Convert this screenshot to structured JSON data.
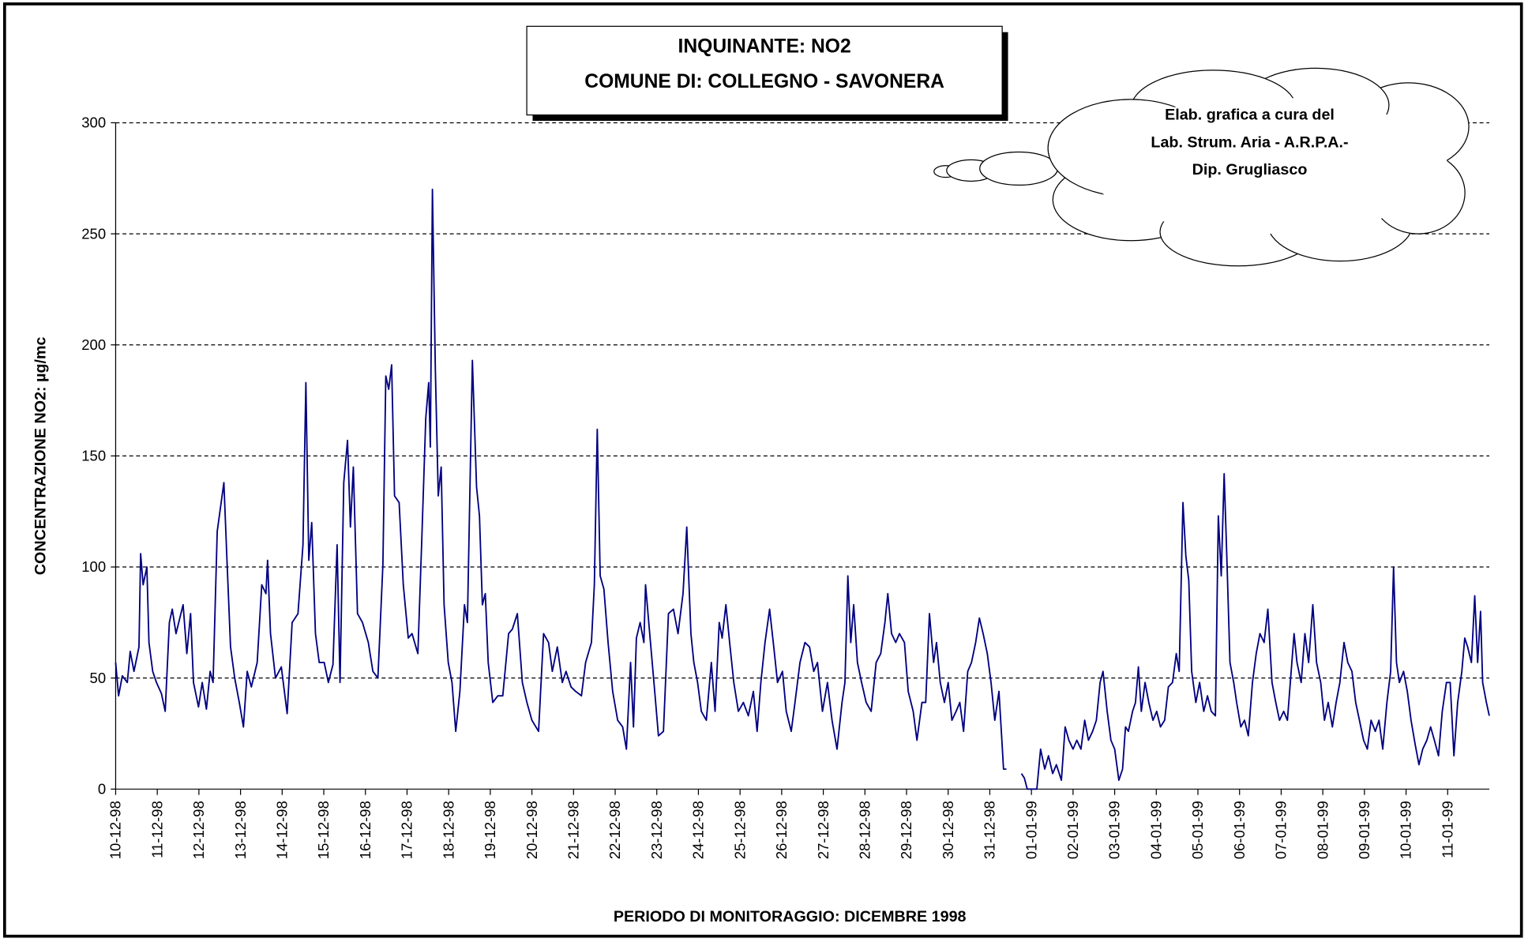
{
  "chart_data": {
    "type": "line",
    "title": "INQUINANTE: NO2",
    "subtitle": "COMUNE DI: COLLEGNO - SAVONERA",
    "annotation": [
      "Elab. grafica a cura del",
      "Lab. Strum. Aria - A.R.P.A.-",
      "Dip. Grugliasco"
    ],
    "ylabel": "CONCENTRAZIONE NO2:  µg/mc",
    "xlabel": "PERIODO DI MONITORAGGIO: DICEMBRE 1998",
    "color": "#000080",
    "grid": true,
    "ylim": [
      0,
      300
    ],
    "yticks": [
      0,
      50,
      100,
      150,
      200,
      250,
      300
    ],
    "xlim": [
      0,
      33
    ],
    "xticks": [
      {
        "value": 0,
        "label": "10-12-98"
      },
      {
        "value": 1,
        "label": "11-12-98"
      },
      {
        "value": 2,
        "label": "12-12-98"
      },
      {
        "value": 3,
        "label": "13-12-98"
      },
      {
        "value": 4,
        "label": "14-12-98"
      },
      {
        "value": 5,
        "label": "15-12-98"
      },
      {
        "value": 6,
        "label": "16-12-98"
      },
      {
        "value": 7,
        "label": "17-12-98"
      },
      {
        "value": 8,
        "label": "18-12-98"
      },
      {
        "value": 9,
        "label": "19-12-98"
      },
      {
        "value": 10,
        "label": "20-12-98"
      },
      {
        "value": 11,
        "label": "21-12-98"
      },
      {
        "value": 12,
        "label": "22-12-98"
      },
      {
        "value": 13,
        "label": "23-12-98"
      },
      {
        "value": 14,
        "label": "24-12-98"
      },
      {
        "value": 15,
        "label": "25-12-98"
      },
      {
        "value": 16,
        "label": "26-12-98"
      },
      {
        "value": 17,
        "label": "27-12-98"
      },
      {
        "value": 18,
        "label": "28-12-98"
      },
      {
        "value": 19,
        "label": "29-12-98"
      },
      {
        "value": 20,
        "label": "30-12-98"
      },
      {
        "value": 21,
        "label": "31-12-98"
      },
      {
        "value": 22,
        "label": "01-01-99"
      },
      {
        "value": 23,
        "label": "02-01-99"
      },
      {
        "value": 24,
        "label": "03-01-99"
      },
      {
        "value": 25,
        "label": "04-01-99"
      },
      {
        "value": 26,
        "label": "05-01-99"
      },
      {
        "value": 27,
        "label": "06-01-99"
      },
      {
        "value": 28,
        "label": "07-01-99"
      },
      {
        "value": 29,
        "label": "08-01-99"
      },
      {
        "value": 30,
        "label": "09-01-99"
      },
      {
        "value": 31,
        "label": "10-01-99"
      },
      {
        "value": 32,
        "label": "11-01-99"
      }
    ],
    "x": [
      0,
      0.07,
      0.16,
      0.28,
      0.35,
      0.44,
      0.56,
      0.6,
      0.66,
      0.75,
      0.8,
      0.89,
      0.98,
      1.1,
      1.19,
      1.29,
      1.36,
      1.45,
      1.62,
      1.71,
      1.8,
      1.87,
      1.99,
      2.08,
      2.18,
      2.27,
      2.34,
      2.44,
      2.6,
      2.67,
      2.76,
      2.86,
      2.97,
      3.07,
      3.16,
      3.26,
      3.4,
      3.51,
      3.61,
      3.65,
      3.72,
      3.84,
      3.98,
      4.12,
      4.24,
      4.38,
      4.5,
      4.57,
      4.64,
      4.71,
      4.8,
      4.89,
      5.01,
      5.11,
      5.22,
      5.32,
      5.39,
      5.48,
      5.57,
      5.64,
      5.71,
      5.81,
      5.93,
      6.07,
      6.18,
      6.3,
      6.42,
      6.49,
      6.56,
      6.63,
      6.7,
      6.81,
      6.91,
      7.03,
      7.12,
      7.26,
      7.35,
      7.45,
      7.52,
      7.56,
      7.61,
      7.68,
      7.75,
      7.82,
      7.89,
      7.99,
      8.08,
      8.17,
      8.27,
      8.38,
      8.45,
      8.57,
      8.67,
      8.74,
      8.81,
      8.88,
      8.95,
      9.06,
      9.18,
      9.3,
      9.44,
      9.53,
      9.65,
      9.77,
      9.88,
      10.0,
      10.16,
      10.28,
      10.4,
      10.49,
      10.61,
      10.73,
      10.82,
      10.94,
      11.05,
      11.19,
      11.29,
      11.43,
      11.5,
      11.57,
      11.64,
      11.73,
      11.83,
      11.94,
      12.06,
      12.18,
      12.27,
      12.37,
      12.44,
      12.51,
      12.6,
      12.69,
      12.73,
      12.83,
      12.95,
      13.04,
      13.16,
      13.28,
      13.4,
      13.51,
      13.63,
      13.72,
      13.82,
      13.89,
      13.98,
      14.07,
      14.19,
      14.31,
      14.4,
      14.5,
      14.57,
      14.66,
      14.75,
      14.85,
      14.96,
      15.08,
      15.2,
      15.32,
      15.41,
      15.5,
      15.6,
      15.71,
      15.81,
      15.9,
      16.02,
      16.11,
      16.23,
      16.32,
      16.44,
      16.56,
      16.67,
      16.77,
      16.86,
      16.98,
      17.1,
      17.21,
      17.33,
      17.45,
      17.52,
      17.59,
      17.66,
      17.73,
      17.82,
      17.92,
      18.03,
      18.15,
      18.27,
      18.38,
      18.48,
      18.55,
      18.64,
      18.74,
      18.83,
      18.95,
      19.04,
      19.16,
      19.25,
      19.37,
      19.46,
      19.55,
      19.65,
      19.72,
      19.81,
      19.91,
      20.0,
      20.09,
      20.19,
      20.28,
      20.37,
      20.47,
      20.56,
      20.66,
      20.75,
      20.84,
      20.94,
      21.03,
      21.12,
      21.22,
      21.29,
      21.33,
      21.4,
      21.58,
      21.76,
      21.83,
      21.9,
      22.13,
      22.22,
      22.32,
      22.41,
      22.51,
      22.6,
      22.72,
      22.81,
      22.9,
      23.0,
      23.09,
      23.19,
      23.28,
      23.37,
      23.47,
      23.56,
      23.65,
      23.72,
      23.82,
      23.91,
      24.0,
      24.1,
      24.19,
      24.26,
      24.33,
      24.43,
      24.5,
      24.57,
      24.64,
      24.73,
      24.82,
      24.92,
      25.01,
      25.1,
      25.2,
      25.29,
      25.39,
      25.48,
      25.55,
      25.64,
      25.71,
      25.78,
      25.85,
      25.95,
      26.04,
      26.14,
      26.23,
      26.32,
      26.42,
      26.49,
      26.56,
      26.63,
      26.7,
      26.77,
      26.86,
      26.93,
      27.03,
      27.12,
      27.21,
      27.31,
      27.4,
      27.49,
      27.59,
      27.68,
      27.78,
      27.87,
      27.96,
      28.06,
      28.15,
      28.24,
      28.31,
      28.38,
      28.48,
      28.57,
      28.66,
      28.76,
      28.85,
      28.95,
      29.04,
      29.13,
      29.23,
      29.32,
      29.41,
      29.51,
      29.6,
      29.7,
      29.79,
      29.88,
      29.98,
      30.07,
      30.16,
      30.26,
      30.35,
      30.44,
      30.54,
      30.63,
      30.7,
      30.77,
      30.84,
      30.94,
      31.03,
      31.12,
      31.22,
      31.31,
      31.4,
      31.5,
      31.59,
      31.68,
      31.78,
      31.87,
      31.97,
      32.06,
      32.15,
      32.24,
      32.34,
      32.41,
      32.48,
      32.57,
      32.65,
      32.72,
      32.79,
      32.84,
      32.93,
      33.0
    ],
    "values": [
      57,
      42,
      51,
      48,
      62,
      53,
      64,
      106,
      92,
      100,
      66,
      53,
      48,
      43,
      35,
      75,
      81,
      70,
      83,
      61,
      79,
      48,
      37,
      48,
      36,
      53,
      48,
      116,
      138,
      105,
      64,
      50,
      39,
      28,
      53,
      46,
      57,
      92,
      88,
      103,
      70,
      50,
      55,
      34,
      75,
      79,
      110,
      183,
      103,
      120,
      70,
      57,
      57,
      48,
      56,
      110,
      48,
      138,
      157,
      118,
      145,
      79,
      75,
      66,
      53,
      50,
      101,
      186,
      180,
      191,
      132,
      129,
      92,
      68,
      70,
      61,
      110,
      167,
      183,
      154,
      270,
      189,
      132,
      145,
      83,
      57,
      48,
      26,
      44,
      83,
      75,
      193,
      136,
      123,
      83,
      88,
      57,
      39,
      42,
      42,
      70,
      72,
      79,
      48,
      39,
      31,
      26,
      70,
      66,
      53,
      64,
      48,
      53,
      46,
      44,
      42,
      57,
      66,
      92,
      162,
      96,
      90,
      66,
      44,
      31,
      28,
      18,
      57,
      28,
      68,
      75,
      66,
      92,
      70,
      44,
      24,
      26,
      79,
      81,
      70,
      88,
      118,
      70,
      57,
      48,
      35,
      31,
      57,
      35,
      75,
      68,
      83,
      66,
      48,
      35,
      39,
      33,
      44,
      26,
      48,
      66,
      81,
      64,
      48,
      53,
      35,
      26,
      39,
      57,
      66,
      64,
      53,
      57,
      35,
      48,
      31,
      18,
      39,
      48,
      96,
      66,
      83,
      57,
      48,
      39,
      35,
      57,
      61,
      75,
      88,
      70,
      66,
      70,
      66,
      44,
      35,
      22,
      39,
      39,
      79,
      57,
      66,
      48,
      39,
      48,
      31,
      35,
      39,
      26,
      53,
      57,
      66,
      77,
      70,
      61,
      48,
      31,
      44,
      22,
      9,
      9,
      null,
      7,
      5,
      0,
      0,
      18,
      9,
      15,
      7,
      11,
      4,
      28,
      22,
      18,
      22,
      18,
      31,
      22,
      26,
      31,
      48,
      53,
      35,
      22,
      18,
      4,
      9,
      28,
      26,
      35,
      39,
      55,
      35,
      48,
      39,
      31,
      35,
      28,
      31,
      46,
      48,
      61,
      53,
      129,
      105,
      94,
      53,
      39,
      48,
      35,
      42,
      35,
      33,
      123,
      96,
      142,
      101,
      57,
      48,
      39,
      28,
      31,
      24,
      48,
      61,
      70,
      66,
      81,
      48,
      39,
      31,
      35,
      31,
      53,
      70,
      57,
      48,
      70,
      57,
      83,
      57,
      48,
      31,
      39,
      28,
      39,
      48,
      66,
      57,
      53,
      39,
      31,
      22,
      18,
      31,
      26,
      31,
      18,
      39,
      53,
      100,
      57,
      48,
      53,
      44,
      31,
      20,
      11,
      18,
      22,
      28,
      22,
      15,
      35,
      48,
      48,
      15,
      39,
      53,
      68,
      64,
      57,
      87,
      57,
      80,
      48,
      39,
      33
    ]
  }
}
